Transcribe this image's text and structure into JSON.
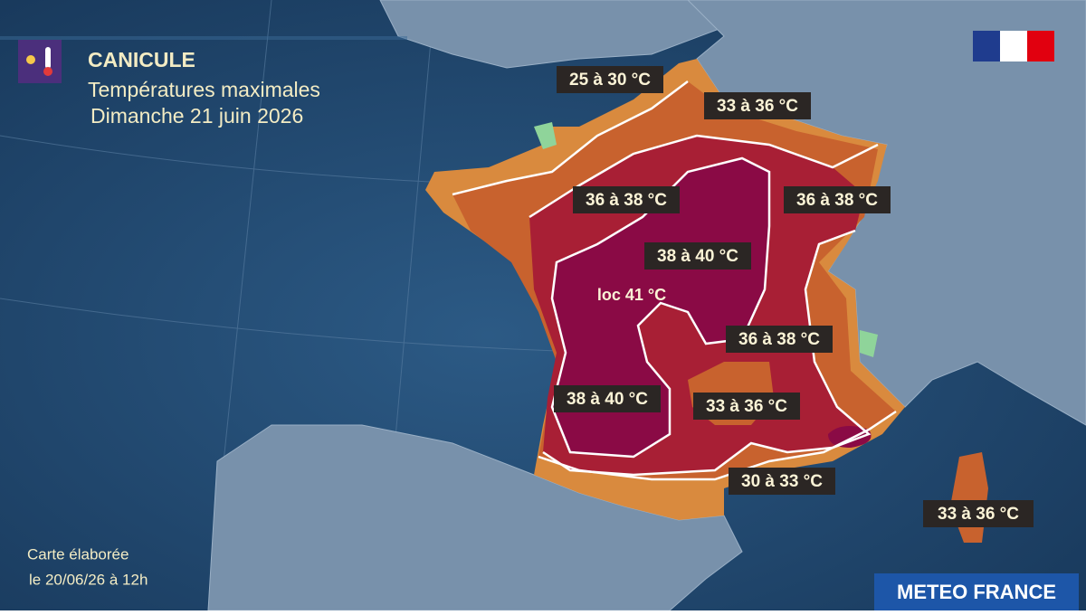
{
  "header": {
    "title": "CANICULE",
    "subtitle": "Températures maximales",
    "date": "Dimanche 21 juin 2026"
  },
  "labels": [
    "25 à 30 °C",
    "33 à 36 °C",
    "36 à 38 °C",
    "36 à 38 °C",
    "38 à 40 °C",
    "36 à 38 °C",
    "38 à 40 °C",
    "33 à 36 °C",
    "30 à 33 °C",
    "33 à 36 °C"
  ],
  "local_max": "loc 41 °C",
  "footer": {
    "note_line1": "Carte élaborée",
    "note_line2": "le 20/06/26 à 12h",
    "brand": "METEO FRANCE"
  }
}
